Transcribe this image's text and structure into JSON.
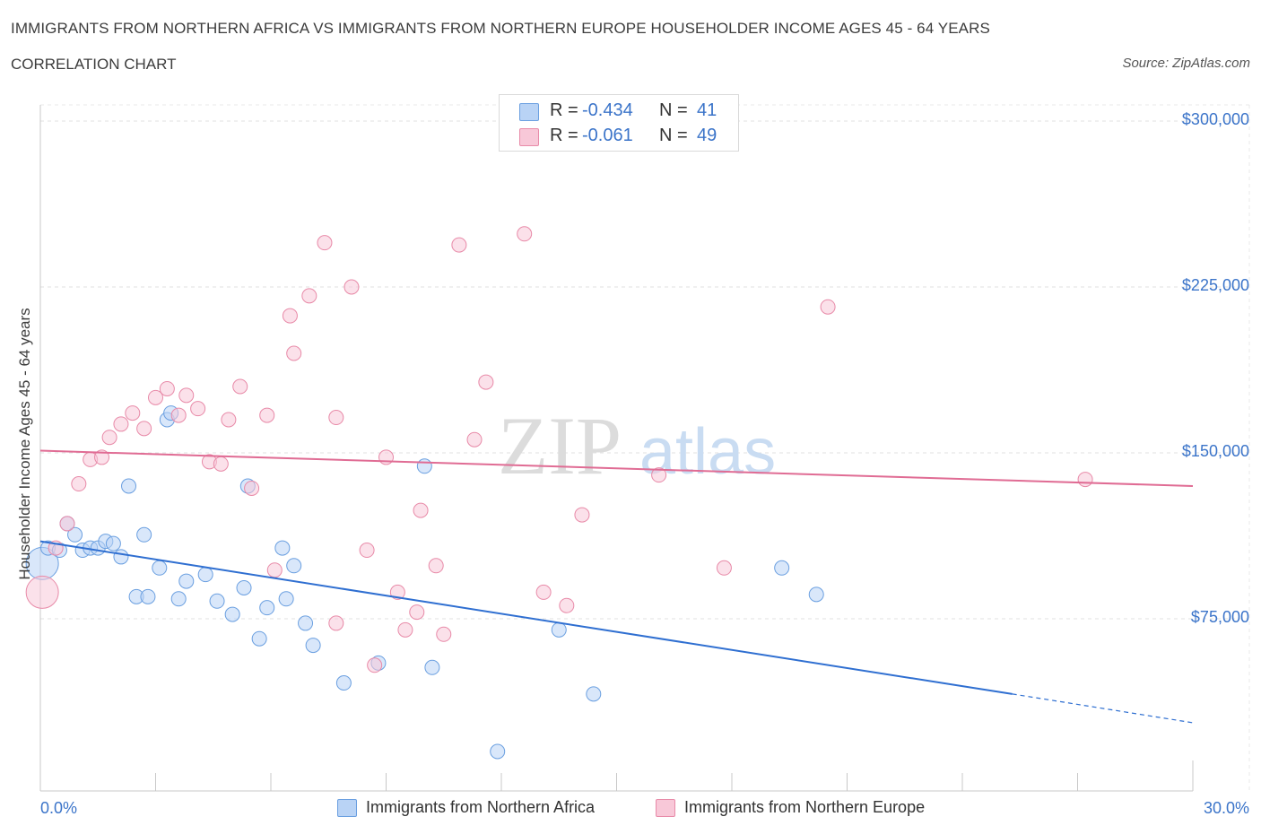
{
  "header": {
    "title": "IMMIGRANTS FROM NORTHERN AFRICA VS IMMIGRANTS FROM NORTHERN EUROPE HOUSEHOLDER INCOME AGES 45 - 64 YEARS",
    "subtitle": "CORRELATION CHART",
    "source": "Source: ZipAtlas.com"
  },
  "watermark": {
    "zip": "ZIP",
    "atlas": "atlas"
  },
  "stats": [
    {
      "r_label": "R =",
      "r_value": "-0.434",
      "n_label": "N =",
      "n_value": "41",
      "color": "#6a9fe0",
      "fill": "#b9d3f5"
    },
    {
      "r_label": "R =",
      "r_value": "-0.061",
      "n_label": "N =",
      "n_value": "49",
      "color": "#e88aa8",
      "fill": "#f8c8d8"
    }
  ],
  "legend": [
    {
      "label": "Immigrants from Northern Africa",
      "fill": "#b9d3f5",
      "stroke": "#6a9fe0"
    },
    {
      "label": "Immigrants from Northern Europe",
      "fill": "#f8c8d8",
      "stroke": "#e88aa8"
    }
  ],
  "chart_data": {
    "type": "scatter",
    "title": "IMMIGRANTS FROM NORTHERN AFRICA VS IMMIGRANTS FROM NORTHERN EUROPE HOUSEHOLDER INCOME AGES 45 - 64 YEARS",
    "subtitle": "CORRELATION CHART",
    "xlabel": "",
    "ylabel": "Householder Income Ages 45 - 64 years",
    "xlim": [
      0,
      30
    ],
    "ylim": [
      0,
      300000
    ],
    "x_tick_labels": [
      "0.0%",
      "30.0%"
    ],
    "y_ticks": [
      75000,
      150000,
      225000,
      300000
    ],
    "y_tick_labels": [
      "$75,000",
      "$150,000",
      "$225,000",
      "$300,000"
    ],
    "grid": true,
    "legend_position": "bottom",
    "series": [
      {
        "name": "Immigrants from Northern Africa",
        "color": "#6a9fe0",
        "points": [
          {
            "x": 0.05,
            "y": 100000,
            "big": true
          },
          {
            "x": 0.2,
            "y": 107000
          },
          {
            "x": 0.5,
            "y": 106000
          },
          {
            "x": 0.7,
            "y": 118000
          },
          {
            "x": 0.9,
            "y": 113000
          },
          {
            "x": 1.1,
            "y": 106000
          },
          {
            "x": 1.3,
            "y": 107000
          },
          {
            "x": 1.5,
            "y": 107000
          },
          {
            "x": 1.7,
            "y": 110000
          },
          {
            "x": 1.9,
            "y": 109000
          },
          {
            "x": 2.1,
            "y": 103000
          },
          {
            "x": 2.3,
            "y": 135000
          },
          {
            "x": 2.5,
            "y": 85000
          },
          {
            "x": 2.7,
            "y": 113000
          },
          {
            "x": 2.8,
            "y": 85000
          },
          {
            "x": 3.1,
            "y": 98000
          },
          {
            "x": 3.3,
            "y": 165000
          },
          {
            "x": 3.4,
            "y": 168000
          },
          {
            "x": 3.6,
            "y": 84000
          },
          {
            "x": 3.8,
            "y": 92000
          },
          {
            "x": 4.3,
            "y": 95000
          },
          {
            "x": 4.6,
            "y": 83000
          },
          {
            "x": 5.0,
            "y": 77000
          },
          {
            "x": 5.3,
            "y": 89000
          },
          {
            "x": 5.4,
            "y": 135000
          },
          {
            "x": 5.7,
            "y": 66000
          },
          {
            "x": 5.9,
            "y": 80000
          },
          {
            "x": 6.3,
            "y": 107000
          },
          {
            "x": 6.4,
            "y": 84000
          },
          {
            "x": 6.6,
            "y": 99000
          },
          {
            "x": 6.9,
            "y": 73000
          },
          {
            "x": 7.1,
            "y": 63000
          },
          {
            "x": 7.9,
            "y": 46000
          },
          {
            "x": 8.8,
            "y": 55000
          },
          {
            "x": 10.0,
            "y": 144000
          },
          {
            "x": 10.2,
            "y": 53000
          },
          {
            "x": 11.9,
            "y": 15000
          },
          {
            "x": 13.5,
            "y": 70000
          },
          {
            "x": 14.4,
            "y": 41000
          },
          {
            "x": 19.3,
            "y": 98000
          },
          {
            "x": 20.2,
            "y": 86000
          }
        ],
        "trend": {
          "x0": 0,
          "y0": 110000,
          "x1": 25.3,
          "y1": 41000,
          "dash_to_x": 30,
          "dash_to_y": 28000
        }
      },
      {
        "name": "Immigrants from Northern Europe",
        "color": "#e88aa8",
        "points": [
          {
            "x": 0.05,
            "y": 87000,
            "big": true
          },
          {
            "x": 0.4,
            "y": 107000
          },
          {
            "x": 0.7,
            "y": 118000
          },
          {
            "x": 1.0,
            "y": 136000
          },
          {
            "x": 1.3,
            "y": 147000
          },
          {
            "x": 1.6,
            "y": 148000
          },
          {
            "x": 1.8,
            "y": 157000
          },
          {
            "x": 2.1,
            "y": 163000
          },
          {
            "x": 2.4,
            "y": 168000
          },
          {
            "x": 2.7,
            "y": 161000
          },
          {
            "x": 3.0,
            "y": 175000
          },
          {
            "x": 3.3,
            "y": 179000
          },
          {
            "x": 3.6,
            "y": 167000
          },
          {
            "x": 3.8,
            "y": 176000
          },
          {
            "x": 4.1,
            "y": 170000
          },
          {
            "x": 4.4,
            "y": 146000
          },
          {
            "x": 4.7,
            "y": 145000
          },
          {
            "x": 4.9,
            "y": 165000
          },
          {
            "x": 5.2,
            "y": 180000
          },
          {
            "x": 5.5,
            "y": 134000
          },
          {
            "x": 5.9,
            "y": 167000
          },
          {
            "x": 6.1,
            "y": 97000
          },
          {
            "x": 6.5,
            "y": 212000
          },
          {
            "x": 6.6,
            "y": 195000
          },
          {
            "x": 7.0,
            "y": 221000
          },
          {
            "x": 7.4,
            "y": 245000
          },
          {
            "x": 7.7,
            "y": 73000
          },
          {
            "x": 7.7,
            "y": 166000
          },
          {
            "x": 8.1,
            "y": 225000
          },
          {
            "x": 8.5,
            "y": 106000
          },
          {
            "x": 8.7,
            "y": 54000
          },
          {
            "x": 9.0,
            "y": 148000
          },
          {
            "x": 9.3,
            "y": 87000
          },
          {
            "x": 9.5,
            "y": 70000
          },
          {
            "x": 9.8,
            "y": 78000
          },
          {
            "x": 9.9,
            "y": 124000
          },
          {
            "x": 10.3,
            "y": 99000
          },
          {
            "x": 10.5,
            "y": 68000
          },
          {
            "x": 10.9,
            "y": 244000
          },
          {
            "x": 11.3,
            "y": 156000
          },
          {
            "x": 11.6,
            "y": 182000
          },
          {
            "x": 12.6,
            "y": 249000
          },
          {
            "x": 13.1,
            "y": 87000
          },
          {
            "x": 13.7,
            "y": 81000
          },
          {
            "x": 14.1,
            "y": 122000
          },
          {
            "x": 16.1,
            "y": 140000
          },
          {
            "x": 17.8,
            "y": 98000
          },
          {
            "x": 20.5,
            "y": 216000
          },
          {
            "x": 27.2,
            "y": 138000
          }
        ],
        "trend": {
          "x0": 0,
          "y0": 151000,
          "x1": 30,
          "y1": 135000
        }
      }
    ]
  }
}
